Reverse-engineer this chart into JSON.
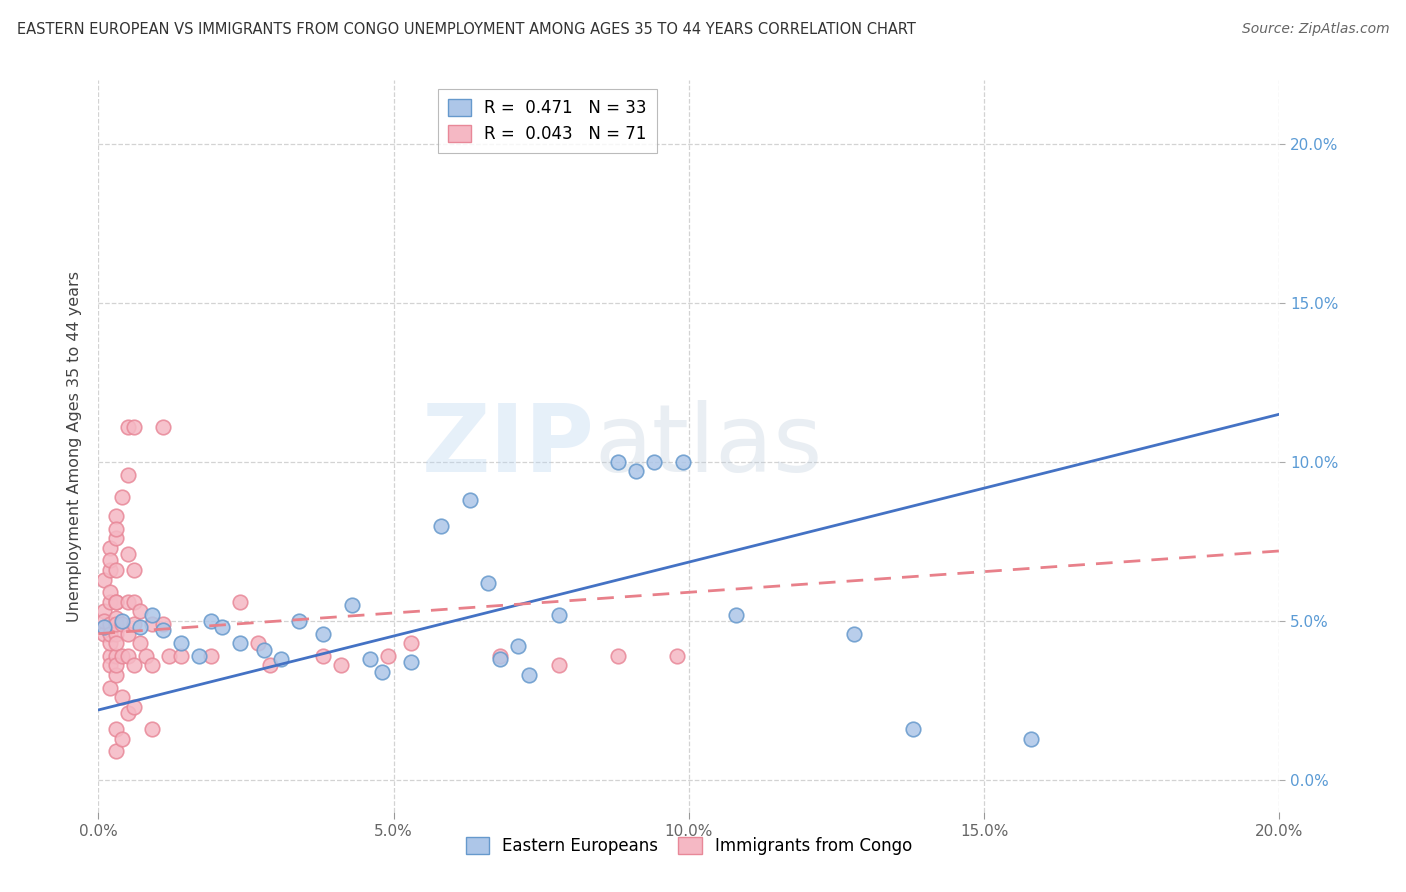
{
  "title": "EASTERN EUROPEAN VS IMMIGRANTS FROM CONGO UNEMPLOYMENT AMONG AGES 35 TO 44 YEARS CORRELATION CHART",
  "source": "Source: ZipAtlas.com",
  "ylabel": "Unemployment Among Ages 35 to 44 years",
  "xlim": [
    0.0,
    0.2
  ],
  "ylim": [
    -0.01,
    0.22
  ],
  "yticks": [
    0.0,
    0.05,
    0.1,
    0.15,
    0.2
  ],
  "xticks": [
    0.0,
    0.05,
    0.1,
    0.15,
    0.2
  ],
  "watermark_line1": "ZIP",
  "watermark_line2": "atlas",
  "legend_entry1": "R =  0.471   N = 33",
  "legend_entry2": "R =  0.043   N = 71",
  "blue_scatter": [
    [
      0.001,
      0.048
    ],
    [
      0.004,
      0.05
    ],
    [
      0.007,
      0.048
    ],
    [
      0.009,
      0.052
    ],
    [
      0.011,
      0.047
    ],
    [
      0.014,
      0.043
    ],
    [
      0.017,
      0.039
    ],
    [
      0.019,
      0.05
    ],
    [
      0.021,
      0.048
    ],
    [
      0.024,
      0.043
    ],
    [
      0.028,
      0.041
    ],
    [
      0.031,
      0.038
    ],
    [
      0.034,
      0.05
    ],
    [
      0.038,
      0.046
    ],
    [
      0.043,
      0.055
    ],
    [
      0.046,
      0.038
    ],
    [
      0.048,
      0.034
    ],
    [
      0.053,
      0.037
    ],
    [
      0.058,
      0.08
    ],
    [
      0.063,
      0.088
    ],
    [
      0.066,
      0.062
    ],
    [
      0.068,
      0.038
    ],
    [
      0.071,
      0.042
    ],
    [
      0.073,
      0.033
    ],
    [
      0.078,
      0.052
    ],
    [
      0.088,
      0.1
    ],
    [
      0.091,
      0.097
    ],
    [
      0.094,
      0.1
    ],
    [
      0.099,
      0.1
    ],
    [
      0.108,
      0.052
    ],
    [
      0.128,
      0.046
    ],
    [
      0.138,
      0.016
    ],
    [
      0.158,
      0.013
    ]
  ],
  "pink_scatter": [
    [
      0.001,
      0.048
    ],
    [
      0.001,
      0.053
    ],
    [
      0.001,
      0.046
    ],
    [
      0.001,
      0.05
    ],
    [
      0.001,
      0.063
    ],
    [
      0.002,
      0.039
    ],
    [
      0.002,
      0.056
    ],
    [
      0.002,
      0.043
    ],
    [
      0.002,
      0.049
    ],
    [
      0.002,
      0.059
    ],
    [
      0.002,
      0.066
    ],
    [
      0.002,
      0.073
    ],
    [
      0.002,
      0.069
    ],
    [
      0.002,
      0.046
    ],
    [
      0.002,
      0.036
    ],
    [
      0.002,
      0.029
    ],
    [
      0.003,
      0.076
    ],
    [
      0.003,
      0.056
    ],
    [
      0.003,
      0.051
    ],
    [
      0.003,
      0.046
    ],
    [
      0.003,
      0.039
    ],
    [
      0.003,
      0.033
    ],
    [
      0.003,
      0.016
    ],
    [
      0.003,
      0.009
    ],
    [
      0.003,
      0.083
    ],
    [
      0.003,
      0.079
    ],
    [
      0.003,
      0.066
    ],
    [
      0.003,
      0.056
    ],
    [
      0.003,
      0.049
    ],
    [
      0.003,
      0.043
    ],
    [
      0.003,
      0.036
    ],
    [
      0.004,
      0.089
    ],
    [
      0.004,
      0.049
    ],
    [
      0.004,
      0.039
    ],
    [
      0.004,
      0.026
    ],
    [
      0.004,
      0.013
    ],
    [
      0.005,
      0.111
    ],
    [
      0.005,
      0.096
    ],
    [
      0.005,
      0.071
    ],
    [
      0.005,
      0.056
    ],
    [
      0.005,
      0.046
    ],
    [
      0.005,
      0.039
    ],
    [
      0.005,
      0.021
    ],
    [
      0.006,
      0.111
    ],
    [
      0.006,
      0.066
    ],
    [
      0.006,
      0.056
    ],
    [
      0.006,
      0.049
    ],
    [
      0.006,
      0.036
    ],
    [
      0.006,
      0.023
    ],
    [
      0.007,
      0.053
    ],
    [
      0.007,
      0.043
    ],
    [
      0.008,
      0.039
    ],
    [
      0.009,
      0.049
    ],
    [
      0.009,
      0.036
    ],
    [
      0.009,
      0.016
    ],
    [
      0.011,
      0.111
    ],
    [
      0.011,
      0.049
    ],
    [
      0.012,
      0.039
    ],
    [
      0.014,
      0.039
    ],
    [
      0.019,
      0.039
    ],
    [
      0.024,
      0.056
    ],
    [
      0.027,
      0.043
    ],
    [
      0.029,
      0.036
    ],
    [
      0.038,
      0.039
    ],
    [
      0.041,
      0.036
    ],
    [
      0.049,
      0.039
    ],
    [
      0.053,
      0.043
    ],
    [
      0.068,
      0.039
    ],
    [
      0.078,
      0.036
    ],
    [
      0.088,
      0.039
    ],
    [
      0.098,
      0.039
    ]
  ],
  "blue_line_x": [
    0.0,
    0.2
  ],
  "blue_line_y": [
    0.022,
    0.115
  ],
  "pink_line_x": [
    0.0,
    0.2
  ],
  "pink_line_y": [
    0.046,
    0.072
  ],
  "blue_line_color": "#4472c4",
  "pink_line_color": "#e8808a",
  "blue_scatter_face": "#adc6e8",
  "blue_scatter_edge": "#6699cc",
  "pink_scatter_face": "#f5b8c4",
  "pink_scatter_edge": "#e88898",
  "grid_color": "#c8c8c8",
  "bg_color": "#ffffff",
  "right_axis_color": "#5b9bd5",
  "ylabel_color": "#444444"
}
